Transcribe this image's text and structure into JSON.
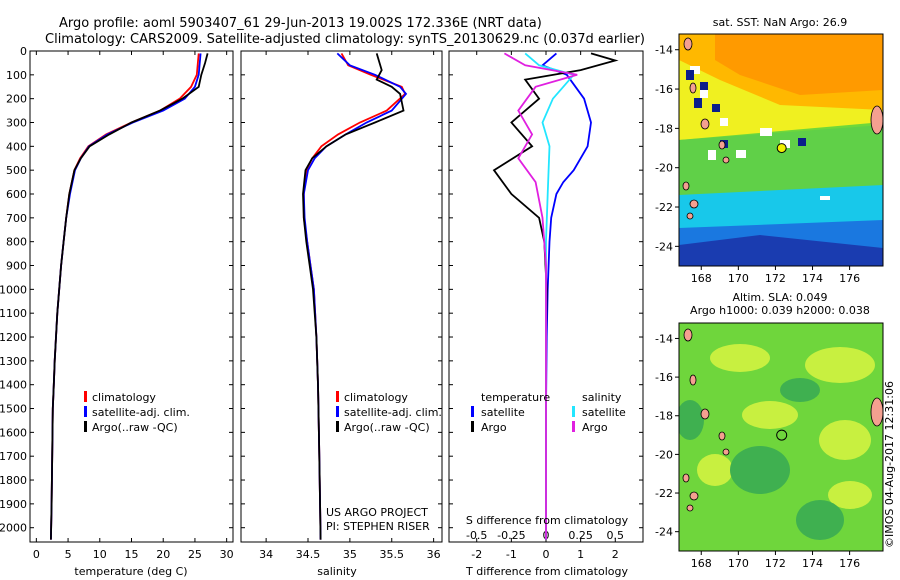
{
  "header": {
    "title_line1": "Argo profile: aoml 5903407_61 29-Jun-2013 19.002S 172.336E (NRT data)",
    "title_line2": "Climatology: CARS2009. Satellite-adjusted climatology: synTS_20130629.nc (0.037d earlier)"
  },
  "colors": {
    "climatology": "#ff0000",
    "satellite": "#0000ff",
    "argo": "#000000",
    "salinity_satellite": "#22e6ff",
    "salinity_argo": "#e020e0"
  },
  "chart_data": [
    {
      "type": "line",
      "panel": "temperature",
      "xlabel": "temperature (deg C)",
      "ylabel": "",
      "xlim": [
        -1,
        31
      ],
      "ylim": [
        2060,
        0
      ],
      "xticks": [
        0,
        5,
        10,
        15,
        20,
        25,
        30
      ],
      "yticks": [
        0,
        100,
        200,
        300,
        400,
        500,
        600,
        700,
        800,
        900,
        1000,
        1100,
        1200,
        1300,
        1400,
        1500,
        1600,
        1700,
        1800,
        1900,
        2000
      ],
      "legend": [
        "climatology",
        "satellite-adj. clim.",
        "Argo(..raw -QC)"
      ],
      "series": [
        {
          "name": "climatology",
          "color": "#ff0000",
          "x": [
            25.6,
            25.3,
            24.4,
            22.6,
            19.5,
            15.0,
            11.0,
            8.2,
            6.9,
            6.0,
            5.2,
            4.7,
            4.3,
            3.9,
            3.6,
            3.3,
            3.1,
            2.9,
            2.75,
            2.6,
            2.5,
            2.4,
            2.3
          ],
          "y": [
            10,
            100,
            150,
            200,
            250,
            300,
            350,
            400,
            450,
            500,
            600,
            700,
            800,
            900,
            1000,
            1100,
            1200,
            1300,
            1400,
            1500,
            1700,
            1900,
            2050
          ]
        },
        {
          "name": "satellite-adj. clim.",
          "color": "#0000ff",
          "x": [
            25.9,
            25.6,
            25.0,
            23.4,
            20.0,
            15.2,
            11.2,
            8.3,
            7.0,
            6.1,
            5.3,
            4.7,
            4.3,
            3.9,
            3.6,
            3.3,
            3.1,
            2.9,
            2.75,
            2.6,
            2.5,
            2.4,
            2.3
          ],
          "y": [
            10,
            100,
            150,
            200,
            250,
            300,
            350,
            400,
            450,
            500,
            600,
            700,
            800,
            900,
            1000,
            1100,
            1200,
            1300,
            1400,
            1500,
            1700,
            1900,
            2050
          ]
        },
        {
          "name": "Argo(..raw -QC)",
          "color": "#000000",
          "x": [
            27.0,
            26.6,
            26.0,
            25.6,
            23.0,
            19.5,
            15.0,
            11.5,
            8.4,
            7.0,
            6.0,
            5.2,
            4.7,
            4.3,
            3.9,
            3.6,
            3.3,
            3.1,
            2.9,
            2.75,
            2.6,
            2.5,
            2.4,
            2.3
          ],
          "y": [
            10,
            50,
            100,
            150,
            200,
            250,
            300,
            350,
            400,
            450,
            500,
            600,
            700,
            800,
            900,
            1000,
            1100,
            1200,
            1300,
            1400,
            1500,
            1700,
            1900,
            2050
          ]
        }
      ]
    },
    {
      "type": "line",
      "panel": "salinity",
      "xlabel": "salinity",
      "ylabel": "",
      "xlim": [
        33.7,
        36.1
      ],
      "ylim": [
        2060,
        0
      ],
      "xticks": [
        34,
        34.5,
        35,
        35.5,
        36
      ],
      "legend": [
        "climatology",
        "satellite-adj. clim.",
        "Argo(..raw -QC)"
      ],
      "annotation": [
        "US ARGO PROJECT",
        "PI: STEPHEN RISER"
      ],
      "series": [
        {
          "name": "climatology",
          "color": "#ff0000",
          "x": [
            34.9,
            34.98,
            35.25,
            35.62,
            35.66,
            35.44,
            35.12,
            34.86,
            34.66,
            34.55,
            34.48,
            34.45,
            34.45,
            34.49,
            34.53,
            34.57,
            34.6,
            34.62,
            34.63,
            34.64,
            34.65
          ],
          "y": [
            10,
            60,
            100,
            150,
            180,
            250,
            300,
            350,
            400,
            450,
            500,
            600,
            700,
            800,
            900,
            1000,
            1200,
            1400,
            1600,
            1800,
            2050
          ]
        },
        {
          "name": "satellite-adj. clim.",
          "color": "#0000ff",
          "x": [
            34.85,
            35.0,
            35.3,
            35.6,
            35.67,
            35.5,
            35.2,
            34.95,
            34.72,
            34.58,
            34.5,
            34.45,
            34.46,
            34.49,
            34.53,
            34.57,
            34.6,
            34.62,
            34.63,
            34.64,
            34.65
          ],
          "y": [
            10,
            60,
            100,
            150,
            180,
            250,
            300,
            350,
            400,
            450,
            500,
            600,
            700,
            800,
            900,
            1000,
            1200,
            1400,
            1600,
            1800,
            2050
          ]
        },
        {
          "name": "Argo(..raw -QC)",
          "color": "#000000",
          "x": [
            35.32,
            35.38,
            35.32,
            35.5,
            35.6,
            35.64,
            35.3,
            34.95,
            34.72,
            34.55,
            34.47,
            34.44,
            34.45,
            34.48,
            34.52,
            34.56,
            34.6,
            34.62,
            34.63,
            34.64,
            34.65
          ],
          "y": [
            10,
            80,
            120,
            150,
            180,
            250,
            300,
            350,
            400,
            450,
            500,
            600,
            700,
            800,
            900,
            1000,
            1200,
            1400,
            1600,
            1800,
            2050
          ]
        }
      ]
    },
    {
      "type": "line",
      "panel": "difference",
      "xlabel": "T difference from climatology",
      "title": "S difference from climatology",
      "xlim": [
        -2.8,
        2.8
      ],
      "ylim": [
        2060,
        0
      ],
      "xticks": [
        -2,
        -1,
        0,
        1,
        2
      ],
      "xticks_top": [
        -0.5,
        -0.25,
        0,
        0.25,
        0.5
      ],
      "legend_temperature": {
        "heading": "temperature",
        "entries": [
          "satellite",
          "Argo"
        ]
      },
      "legend_salinity": {
        "heading": "salinity",
        "entries": [
          "satellite",
          "Argo"
        ]
      },
      "series": [
        {
          "name": "temperature satellite",
          "color": "#0000ff",
          "x": [
            0.3,
            -0.1,
            0.6,
            1.1,
            1.3,
            1.2,
            0.8,
            0.5,
            0.3,
            0.15,
            0.1,
            0.05,
            0.02,
            0,
            0
          ],
          "y": [
            10,
            60,
            100,
            200,
            300,
            400,
            500,
            550,
            600,
            700,
            800,
            1000,
            1200,
            1500,
            2050
          ]
        },
        {
          "name": "temperature Argo",
          "color": "#000000",
          "x": [
            1.3,
            2.0,
            1.0,
            -0.6,
            -0.2,
            -1.0,
            -0.4,
            -1.5,
            -1.0,
            -0.2,
            -0.05,
            0.02,
            0,
            0,
            0
          ],
          "y": [
            10,
            40,
            80,
            120,
            200,
            300,
            400,
            500,
            600,
            700,
            800,
            1000,
            1200,
            1500,
            2050
          ]
        },
        {
          "name": "salinity satellite",
          "color": "#22e6ff",
          "x": [
            -0.6,
            -0.2,
            0.8,
            0.5,
            0.2,
            -0.1,
            0.1,
            0.05,
            0,
            0,
            0,
            0
          ],
          "y": [
            10,
            60,
            100,
            150,
            200,
            300,
            400,
            600,
            800,
            1000,
            1500,
            2050
          ]
        },
        {
          "name": "salinity Argo",
          "color": "#e020e0",
          "x": [
            -1.2,
            -0.6,
            0.9,
            -0.3,
            -0.8,
            -0.4,
            -0.8,
            -0.3,
            -0.1,
            0,
            0,
            0
          ],
          "y": [
            10,
            60,
            100,
            150,
            250,
            350,
            450,
            550,
            700,
            900,
            1500,
            2050
          ]
        }
      ]
    },
    {
      "type": "heatmap",
      "panel": "sst-map",
      "title": "sat. SST: NaN Argo: 26.9",
      "xlim": [
        166.8,
        177.8
      ],
      "ylim": [
        -25,
        -13.2
      ],
      "xticks": [
        168,
        170,
        172,
        174,
        176
      ],
      "yticks": [
        -14,
        -16,
        -18,
        -20,
        -22,
        -24
      ],
      "argo_position": [
        172.336,
        -19.002
      ]
    },
    {
      "type": "heatmap",
      "panel": "sla-map",
      "title": "Altim. SLA: 0.049",
      "subtitle": "Argo h1000: 0.039 h2000: 0.038",
      "xlim": [
        166.8,
        177.8
      ],
      "ylim": [
        -25,
        -13.2
      ],
      "xticks": [
        168,
        170,
        172,
        174,
        176
      ],
      "yticks": [
        -14,
        -16,
        -18,
        -20,
        -22,
        -24
      ],
      "argo_position": [
        172.336,
        -19.002
      ]
    }
  ],
  "footer": {
    "stamp": "©IMOS 04-Aug-2017 12:31:06"
  }
}
